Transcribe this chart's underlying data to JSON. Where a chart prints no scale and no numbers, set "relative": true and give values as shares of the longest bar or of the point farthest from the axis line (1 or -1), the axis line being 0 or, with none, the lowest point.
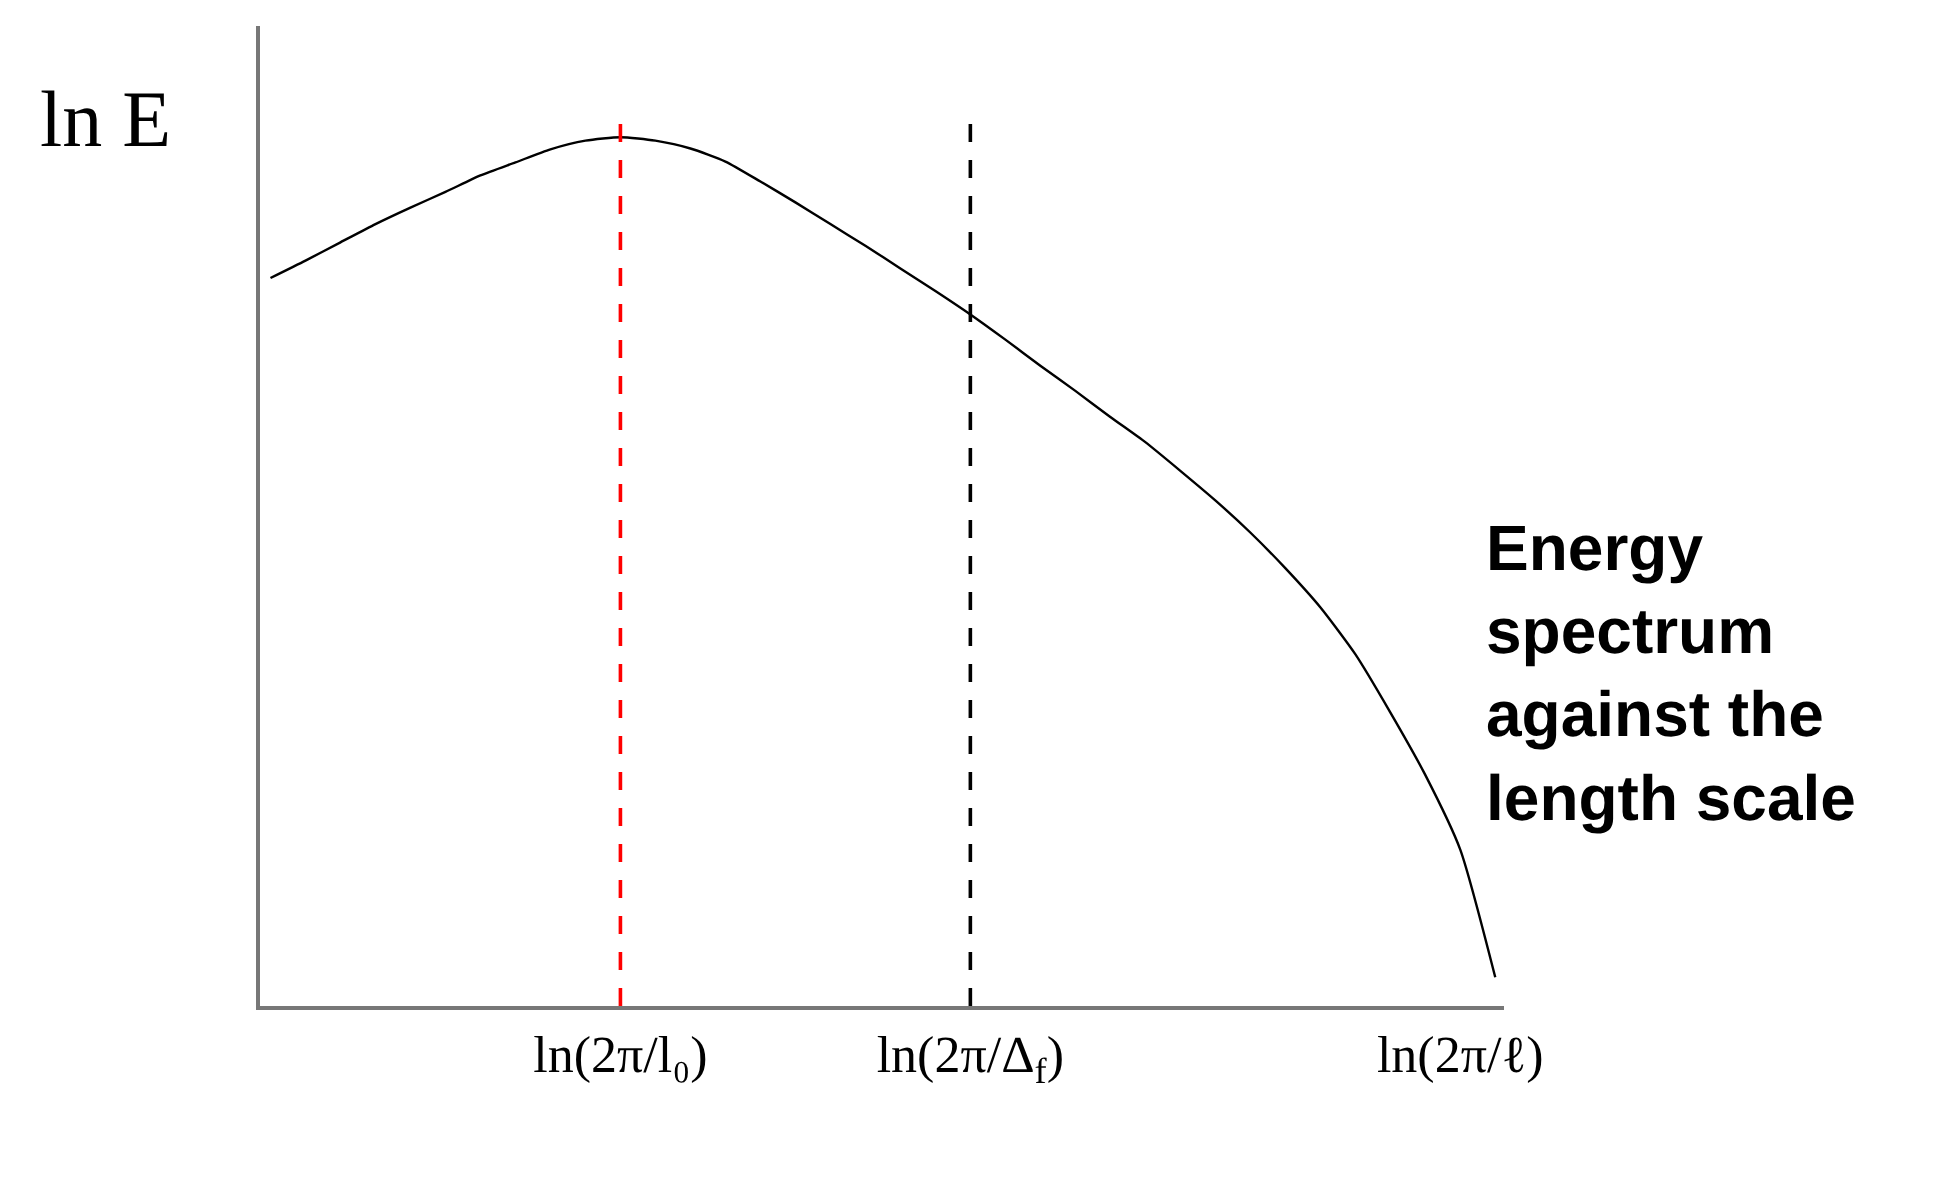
{
  "chart_data": {
    "type": "line",
    "relative": true,
    "ylabel": "ln E",
    "categories": [
      null,
      null,
      null,
      null,
      null,
      null,
      null,
      null,
      null,
      null,
      "ln(2π/l₀)",
      null,
      null,
      null,
      null,
      null,
      null,
      null,
      null,
      null,
      "ln(2π/Δ$_{f}$)",
      null,
      null,
      null,
      null,
      null,
      null,
      null,
      null,
      null,
      null,
      null,
      null,
      null,
      "ln(2π/ℓ)",
      null
    ],
    "color": "#000000",
    "values": [
      0.838,
      0.858,
      0.879,
      0.9,
      0.919,
      0.937,
      0.956,
      0.971,
      0.986,
      0.996,
      1,
      0.996,
      0.987,
      0.972,
      0.949,
      0.925,
      0.9,
      0.875,
      0.849,
      0.823,
      0.796,
      0.767,
      0.737,
      0.708,
      0.678,
      0.649,
      0.616,
      0.582,
      0.545,
      0.504,
      0.459,
      0.405,
      0.338,
      0.266,
      0.18,
      0.033
    ],
    "ref_lines": [
      {
        "axis": "x",
        "value": "ln(2π/l₀)",
        "color": "#ff0000",
        "line_style": "dashed"
      },
      {
        "axis": "x",
        "value": "ln(2π/Δ$_{f}$)",
        "color": "#000000",
        "line_style": "dashed"
      }
    ],
    "annotations": [
      "Energy spectrum against the length scale"
    ]
  }
}
